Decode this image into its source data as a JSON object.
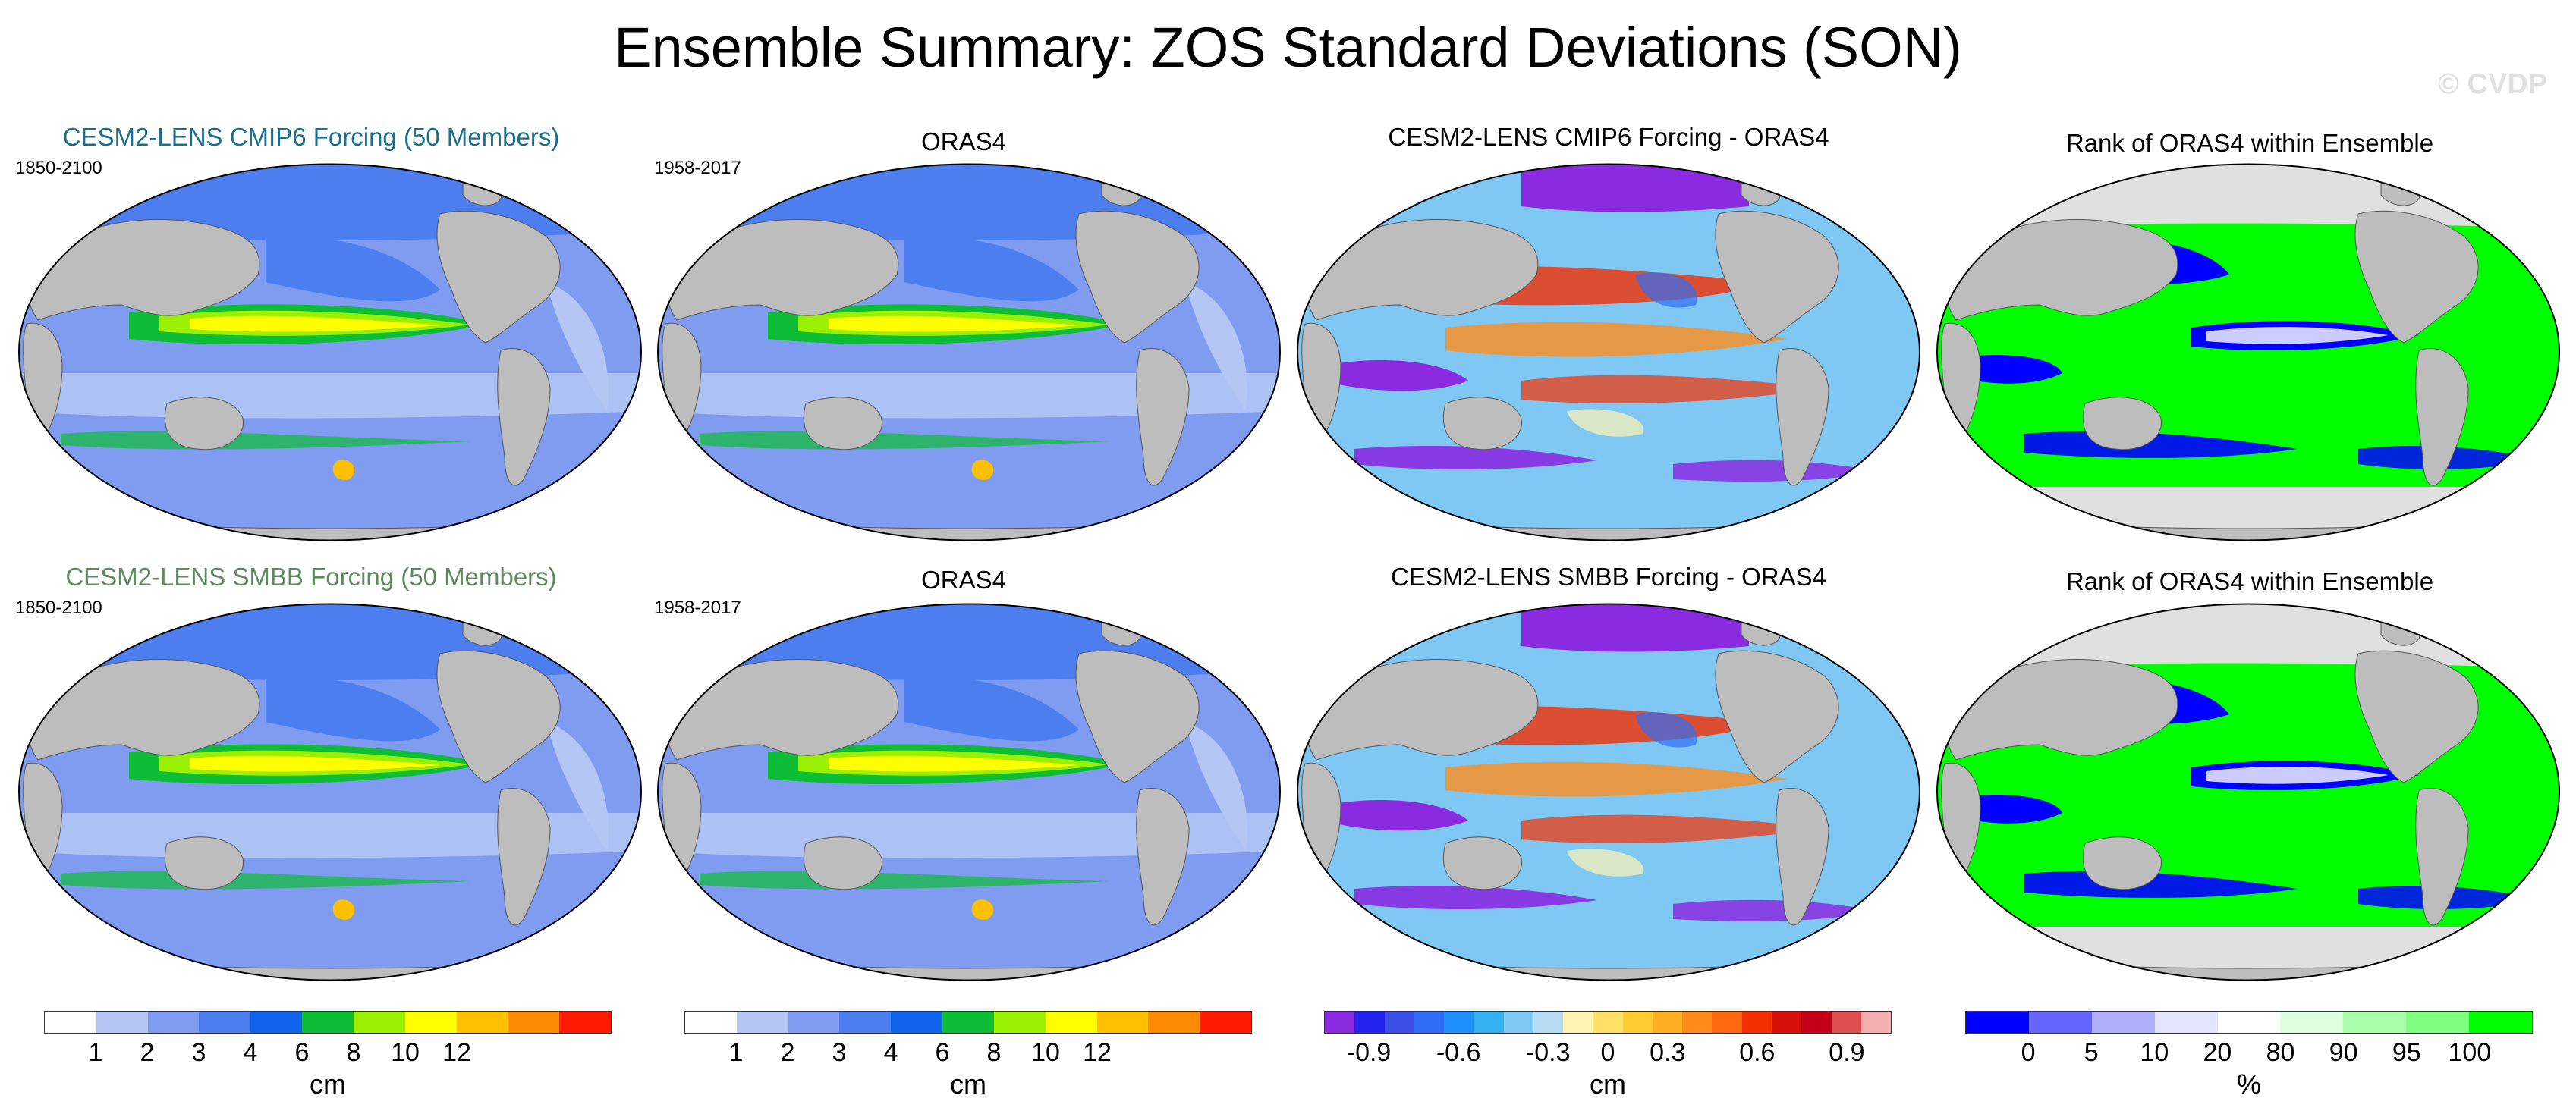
{
  "chart_data": {
    "type": "heatmap",
    "title": "Ensemble Summary: ZOS Standard Deviations (SON)",
    "watermark": "© CVDP",
    "panels": [
      {
        "row": 1,
        "col": 1,
        "title": "CESM2-LENS CMIP6 Forcing (50 Members)",
        "years": "1850-2100",
        "scale": "std"
      },
      {
        "row": 1,
        "col": 2,
        "title": "ORAS4",
        "years": "1958-2017",
        "scale": "std"
      },
      {
        "row": 1,
        "col": 3,
        "title": "CESM2-LENS CMIP6 Forcing - ORAS4",
        "years": "",
        "scale": "diff"
      },
      {
        "row": 1,
        "col": 4,
        "title": "Rank of ORAS4 within Ensemble",
        "years": "",
        "scale": "rank"
      },
      {
        "row": 2,
        "col": 1,
        "title": "CESM2-LENS SMBB Forcing (50 Members)",
        "years": "1850-2100",
        "scale": "std"
      },
      {
        "row": 2,
        "col": 2,
        "title": "ORAS4",
        "years": "1958-2017",
        "scale": "std"
      },
      {
        "row": 2,
        "col": 3,
        "title": "CESM2-LENS SMBB Forcing - ORAS4",
        "years": "",
        "scale": "diff"
      },
      {
        "row": 2,
        "col": 4,
        "title": "Rank of ORAS4 within Ensemble",
        "years": "",
        "scale": "rank"
      }
    ],
    "colorbars": [
      {
        "name": "std",
        "units": "cm",
        "colors": [
          "#ffffff",
          "#b3c6f4",
          "#7f9cf0",
          "#4c7ef0",
          "#0f63ea",
          "#0cbd35",
          "#99f000",
          "#ffff00",
          "#ffc000",
          "#ff8c00",
          "#ff1a00"
        ],
        "tick_labels": [
          "1",
          "2",
          "3",
          "4",
          "6",
          "8",
          "10",
          "12"
        ]
      },
      {
        "name": "diff",
        "units": "cm",
        "colors": [
          "#8a2be2",
          "#2323ee",
          "#3c50e6",
          "#2f6ef5",
          "#1e90ff",
          "#35b0f0",
          "#7fc8f4",
          "#b9dcf5",
          "#fff3b3",
          "#ffe066",
          "#ffcc33",
          "#ffad22",
          "#ff8c1a",
          "#ff6a10",
          "#f43000",
          "#d8100a",
          "#c40018",
          "#e05050",
          "#f5aeb0"
        ],
        "tick_labels": [
          "-0.9",
          "-0.6",
          "-0.3",
          "0",
          "0.3",
          "0.6",
          "0.9"
        ]
      },
      {
        "name": "rank",
        "units": "%",
        "colors": [
          "#0000ff",
          "#6666ff",
          "#b0b0ff",
          "#e4e4ff",
          "#ffffff",
          "#ddffdd",
          "#aaffaa",
          "#7fff7f",
          "#00ff00"
        ],
        "tick_labels": [
          "0",
          "5",
          "10",
          "20",
          "80",
          "90",
          "95",
          "100"
        ]
      }
    ]
  }
}
